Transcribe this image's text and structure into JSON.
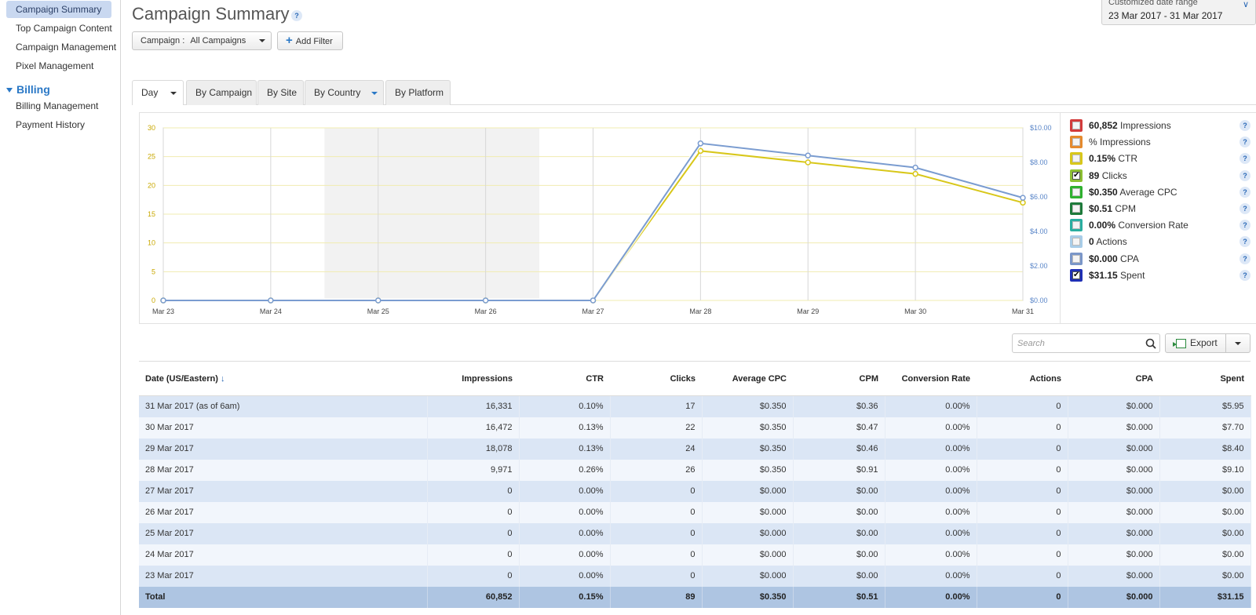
{
  "sidebar": {
    "items": [
      {
        "label": "Campaign Summary"
      },
      {
        "label": "Top Campaign Content"
      },
      {
        "label": "Campaign Management"
      },
      {
        "label": "Pixel Management"
      }
    ],
    "billing_group": {
      "label": "Billing",
      "items": [
        {
          "label": "Billing Management"
        },
        {
          "label": "Payment History"
        }
      ]
    }
  },
  "header": {
    "title": "Campaign Summary",
    "help": "?",
    "date_range_label": "Customized date range",
    "date_range_value": "23 Mar 2017 - 31 Mar 2017"
  },
  "filters": {
    "campaign_label": "Campaign :",
    "campaign_value": "All Campaigns",
    "add_filter": "Add Filter"
  },
  "tabs": [
    {
      "label": "Day"
    },
    {
      "label": "By Campaign"
    },
    {
      "label": "By Site"
    },
    {
      "label": "By Country"
    },
    {
      "label": "By Platform"
    }
  ],
  "legend": [
    {
      "value": "60,852",
      "label": "Impressions",
      "color": "#d23b3b",
      "checked": false
    },
    {
      "value": "",
      "label": "% Impressions",
      "color": "#e58a2e",
      "checked": false
    },
    {
      "value": "0.15%",
      "label": "CTR",
      "color": "#d8c71a",
      "checked": false
    },
    {
      "value": "89",
      "label": "Clicks",
      "color": "#8cbf32",
      "checked": true
    },
    {
      "value": "$0.350",
      "label": "Average CPC",
      "color": "#2fb12f",
      "checked": false
    },
    {
      "value": "$0.51",
      "label": "CPM",
      "color": "#1d7a3a",
      "checked": false
    },
    {
      "value": "0.00%",
      "label": "Conversion Rate",
      "color": "#2aaea0",
      "checked": false
    },
    {
      "value": "0",
      "label": "Actions",
      "color": "#a8cde8",
      "checked": false
    },
    {
      "value": "$0.000",
      "label": "CPA",
      "color": "#7a96c8",
      "checked": false
    },
    {
      "value": "$31.15",
      "label": "Spent",
      "color": "#1f2fb5",
      "checked": true
    }
  ],
  "chart_data": {
    "type": "line",
    "x": [
      "Mar 23",
      "Mar 24",
      "Mar 25",
      "Mar 26",
      "Mar 27",
      "Mar 28",
      "Mar 29",
      "Mar 30",
      "Mar 31"
    ],
    "y_left_ticks": [
      "0",
      "5",
      "10",
      "15",
      "20",
      "25",
      "30"
    ],
    "y_right_ticks": [
      "$0.00",
      "$2.00",
      "$4.00",
      "$6.00",
      "$8.00",
      "$10.00"
    ],
    "ylim_left": [
      0,
      30
    ],
    "ylim_right": [
      0,
      10
    ],
    "shaded_range": [
      "Mar 25",
      "Mar 27"
    ],
    "series": [
      {
        "name": "Clicks",
        "axis": "left",
        "color": "#d8c71a",
        "values": [
          0,
          0,
          0,
          0,
          0,
          26,
          24,
          22,
          17
        ]
      },
      {
        "name": "Spent",
        "axis": "right",
        "color": "#7a9cd0",
        "values": [
          0,
          0,
          0,
          0,
          0,
          9.1,
          8.4,
          7.7,
          5.95
        ]
      }
    ]
  },
  "toolbar": {
    "search_placeholder": "Search",
    "export_label": "Export"
  },
  "table": {
    "columns": [
      "Date (US/Eastern)",
      "Impressions",
      "CTR",
      "Clicks",
      "Average CPC",
      "CPM",
      "Conversion Rate",
      "Actions",
      "CPA",
      "Spent"
    ],
    "sort_indicator": "↓",
    "rows": [
      [
        "31 Mar 2017 (as of 6am)",
        "16,331",
        "0.10%",
        "17",
        "$0.350",
        "$0.36",
        "0.00%",
        "0",
        "$0.000",
        "$5.95"
      ],
      [
        "30 Mar 2017",
        "16,472",
        "0.13%",
        "22",
        "$0.350",
        "$0.47",
        "0.00%",
        "0",
        "$0.000",
        "$7.70"
      ],
      [
        "29 Mar 2017",
        "18,078",
        "0.13%",
        "24",
        "$0.350",
        "$0.46",
        "0.00%",
        "0",
        "$0.000",
        "$8.40"
      ],
      [
        "28 Mar 2017",
        "9,971",
        "0.26%",
        "26",
        "$0.350",
        "$0.91",
        "0.00%",
        "0",
        "$0.000",
        "$9.10"
      ],
      [
        "27 Mar 2017",
        "0",
        "0.00%",
        "0",
        "$0.000",
        "$0.00",
        "0.00%",
        "0",
        "$0.000",
        "$0.00"
      ],
      [
        "26 Mar 2017",
        "0",
        "0.00%",
        "0",
        "$0.000",
        "$0.00",
        "0.00%",
        "0",
        "$0.000",
        "$0.00"
      ],
      [
        "25 Mar 2017",
        "0",
        "0.00%",
        "0",
        "$0.000",
        "$0.00",
        "0.00%",
        "0",
        "$0.000",
        "$0.00"
      ],
      [
        "24 Mar 2017",
        "0",
        "0.00%",
        "0",
        "$0.000",
        "$0.00",
        "0.00%",
        "0",
        "$0.000",
        "$0.00"
      ],
      [
        "23 Mar 2017",
        "0",
        "0.00%",
        "0",
        "$0.000",
        "$0.00",
        "0.00%",
        "0",
        "$0.000",
        "$0.00"
      ]
    ],
    "total": [
      "Total",
      "60,852",
      "0.15%",
      "89",
      "$0.350",
      "$0.51",
      "0.00%",
      "0",
      "$0.000",
      "$31.15"
    ]
  }
}
